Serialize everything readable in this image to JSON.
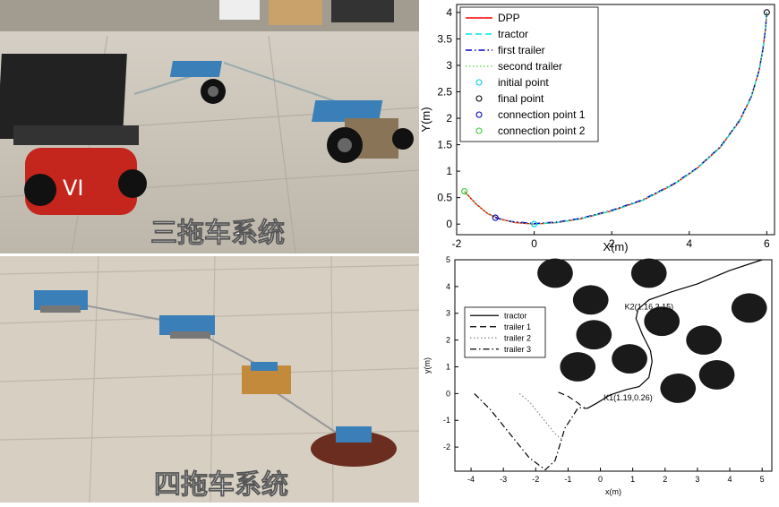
{
  "photos": [
    {
      "caption": "三拖车系统",
      "description_hidden": ""
    },
    {
      "caption": "四拖车系统"
    }
  ],
  "chart_data": [
    {
      "type": "line",
      "xlabel": "X(m)",
      "ylabel": "Y(m)",
      "xlim": [
        -2,
        6.2
      ],
      "ylim": [
        -0.2,
        4.15
      ],
      "xticks": [
        -2,
        0,
        2,
        4,
        6
      ],
      "yticks": [
        0,
        0.5,
        1,
        1.5,
        2,
        2.5,
        3,
        3.5,
        4
      ],
      "grid": false,
      "legend_position": "top-left",
      "series": [
        {
          "name": "DPP",
          "color": "#ff0000",
          "style": "solid",
          "x": [
            -1.8,
            -1.5,
            -1.2,
            -0.9,
            -0.5,
            0,
            0.6,
            1.2,
            2,
            2.8,
            3.6,
            4.2,
            4.8,
            5.3,
            5.6,
            5.8,
            5.9,
            5.97,
            6
          ],
          "y": [
            0.62,
            0.38,
            0.2,
            0.1,
            0.03,
            0,
            0.03,
            0.1,
            0.25,
            0.45,
            0.75,
            1.05,
            1.45,
            1.95,
            2.4,
            2.9,
            3.3,
            3.7,
            4.0
          ]
        },
        {
          "name": "tractor",
          "color": "#00e5ee",
          "style": "dashed",
          "x": [
            0,
            0.6,
            1.2,
            2,
            2.8,
            3.6,
            4.2,
            4.8,
            5.3,
            5.6,
            5.8,
            5.9,
            5.97,
            6
          ],
          "y": [
            0,
            0.03,
            0.1,
            0.25,
            0.45,
            0.75,
            1.05,
            1.45,
            1.95,
            2.4,
            2.9,
            3.3,
            3.7,
            4.0
          ]
        },
        {
          "name": "first trailer",
          "color": "#0000cc",
          "style": "dashdot",
          "x": [
            -1,
            -0.6,
            0,
            0.6,
            1.2,
            2,
            2.8,
            3.6,
            4.2,
            4.8,
            5.3,
            5.6,
            5.8,
            5.9,
            5.97,
            6
          ],
          "y": [
            0.12,
            0.05,
            0.01,
            0.04,
            0.11,
            0.26,
            0.46,
            0.76,
            1.06,
            1.46,
            1.96,
            2.41,
            2.9,
            3.3,
            3.7,
            4.0
          ]
        },
        {
          "name": "second trailer",
          "color": "#66dd66",
          "style": "dotted",
          "x": [
            -1.8,
            -1.5,
            -1.2,
            -0.9,
            -0.5,
            0,
            0.6,
            1.2,
            2,
            2.8,
            3.6,
            4.2,
            4.8,
            5.3,
            5.6,
            5.8,
            5.9,
            5.97,
            6
          ],
          "y": [
            0.62,
            0.38,
            0.2,
            0.1,
            0.03,
            0,
            0.03,
            0.1,
            0.25,
            0.45,
            0.75,
            1.05,
            1.45,
            1.95,
            2.4,
            2.9,
            3.3,
            3.7,
            4.0
          ]
        }
      ],
      "points": [
        {
          "name": "initial point",
          "color": "#00ccee",
          "x": 0,
          "y": 0
        },
        {
          "name": "final point",
          "color": "#000000",
          "x": 6,
          "y": 4.0
        },
        {
          "name": "connection point 1",
          "color": "#0000aa",
          "x": -1,
          "y": 0.12
        },
        {
          "name": "connection point 2",
          "color": "#33cc33",
          "x": -1.8,
          "y": 0.62
        }
      ]
    },
    {
      "type": "line",
      "xlabel": "x(m)",
      "ylabel": "y(m)",
      "xlim": [
        -4.5,
        5.3
      ],
      "ylim": [
        -2.9,
        5
      ],
      "xticks": [
        -4,
        -3,
        -2,
        -1,
        0,
        1,
        2,
        3,
        4,
        5
      ],
      "yticks": [
        -2,
        -1,
        0,
        1,
        2,
        3,
        4,
        5
      ],
      "grid": false,
      "legend_position": "middle-left",
      "series": [
        {
          "name": "tractor",
          "color": "#000000",
          "style": "solid",
          "x": [
            -0.4,
            -0.1,
            0.3,
            0.8,
            1.2,
            1.5,
            1.6,
            1.55,
            1.3,
            1.1,
            1.16,
            1.5,
            2.2,
            3.0,
            4.0,
            5.0
          ],
          "y": [
            -0.55,
            -0.35,
            -0.05,
            0.15,
            0.26,
            0.6,
            1.2,
            1.6,
            2.2,
            2.8,
            3.15,
            3.5,
            3.8,
            4.1,
            4.6,
            5.0
          ]
        },
        {
          "name": "trailer 1",
          "color": "#000000",
          "style": "dashed",
          "x": [
            -1.3,
            -1.0,
            -0.7,
            -0.5,
            -0.4
          ],
          "y": [
            0.05,
            -0.1,
            -0.35,
            -0.55,
            -0.55
          ]
        },
        {
          "name": "trailer 2",
          "color": "#888888",
          "style": "dotted",
          "x": [
            -2.5,
            -2.2,
            -1.8,
            -1.4,
            -1.2
          ],
          "y": [
            0,
            -0.3,
            -0.9,
            -1.5,
            -1.7
          ]
        },
        {
          "name": "trailer 3",
          "color": "#000000",
          "style": "dashdot",
          "x": [
            -3.9,
            -3.4,
            -2.8,
            -2.2,
            -1.7,
            -1.4,
            -1.1,
            -0.7,
            -0.5
          ],
          "y": [
            0,
            -0.6,
            -1.5,
            -2.4,
            -2.85,
            -2.5,
            -1.3,
            -0.55,
            -0.5
          ]
        }
      ],
      "obstacles": [
        {
          "x": -1.4,
          "y": 4.5
        },
        {
          "x": 1.5,
          "y": 4.5
        },
        {
          "x": -0.3,
          "y": 3.5
        },
        {
          "x": 4.6,
          "y": 3.2
        },
        {
          "x": 1.9,
          "y": 2.7
        },
        {
          "x": -0.2,
          "y": 2.2
        },
        {
          "x": 3.2,
          "y": 2.0
        },
        {
          "x": 0.9,
          "y": 1.3
        },
        {
          "x": -0.7,
          "y": 1.0
        },
        {
          "x": 3.6,
          "y": 0.7
        },
        {
          "x": 2.4,
          "y": 0.2
        }
      ],
      "obstacle_radius": 0.55,
      "annotations": [
        {
          "text": "K2(1.16,3.15)",
          "x": 0.75,
          "y": 3.15
        },
        {
          "text": "K1(1.19,0.26)",
          "x": 0.1,
          "y": -0.25
        }
      ]
    }
  ]
}
